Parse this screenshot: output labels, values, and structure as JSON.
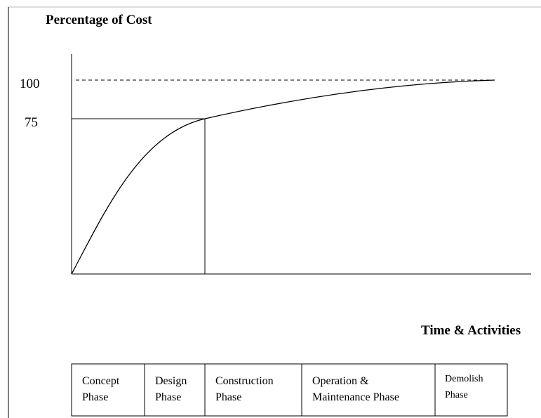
{
  "title": "Percentage of Cost",
  "y_labels": [
    "100",
    "75"
  ],
  "x_label": "Time & Activities",
  "phases": [
    [
      "Concept",
      "Phase"
    ],
    [
      "Design",
      "Phase"
    ],
    [
      "Construction",
      "Phase"
    ],
    [
      "Operation &",
      "Maintenance Phase"
    ],
    [
      "Demolish",
      "Phase"
    ]
  ]
}
